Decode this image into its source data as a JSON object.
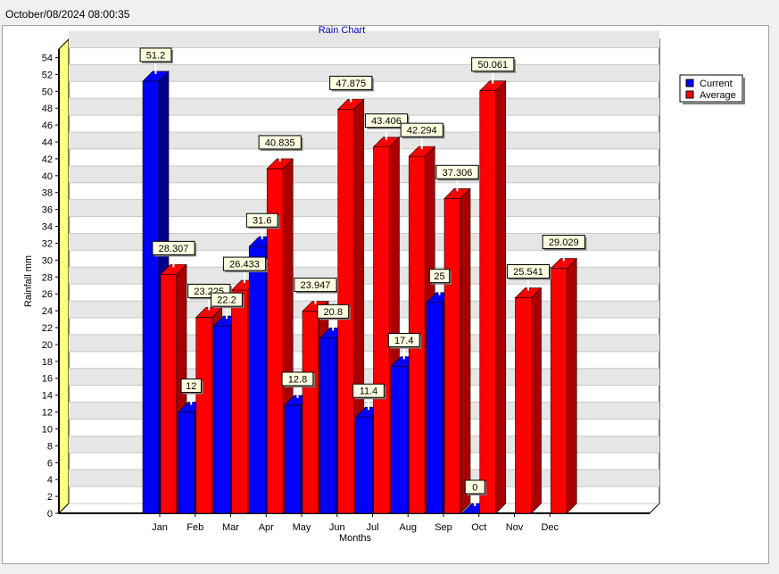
{
  "window": {
    "timestamp": "October/08/2024 08:00:35"
  },
  "colors": {
    "current": "#0000ff",
    "current_dark": "#00008a",
    "average": "#ff0000",
    "average_dark": "#a80000",
    "title": "#0000c0",
    "label_bg": "#ffffe1",
    "wall_left": "#ffff80",
    "band": "#e6e6e6"
  },
  "chart_data": {
    "type": "bar",
    "title": "Rain Chart",
    "xlabel": "Months",
    "ylabel": "Rainfall mm",
    "ylim": [
      0,
      55
    ],
    "yticks": [
      0,
      2,
      4,
      6,
      8,
      10,
      12,
      14,
      16,
      18,
      20,
      22,
      24,
      26,
      28,
      30,
      32,
      34,
      36,
      38,
      40,
      42,
      44,
      46,
      48,
      50,
      52,
      54
    ],
    "categories": [
      "Jan",
      "Feb",
      "Mar",
      "Apr",
      "May",
      "Jun",
      "Jul",
      "Aug",
      "Sep",
      "Oct",
      "Nov",
      "Dec"
    ],
    "series": [
      {
        "name": "Current",
        "values": [
          51.2,
          12,
          22.2,
          31.6,
          12.8,
          20.8,
          11.4,
          17.4,
          25,
          0,
          null,
          null
        ],
        "labels": [
          "51.2",
          "12",
          "22.2",
          "31.6",
          "12.8",
          "20.8",
          "11.4",
          "17.4",
          "25",
          "0",
          "",
          ""
        ]
      },
      {
        "name": "Average",
        "values": [
          28.307,
          23.225,
          26.433,
          40.835,
          23.947,
          47.875,
          43.406,
          42.294,
          37.306,
          50.061,
          25.541,
          29.029
        ],
        "labels": [
          "28.307",
          "23.225",
          "26.433",
          "40.835",
          "23.947",
          "47.875",
          "43.406",
          "42.294",
          "37.306",
          "50.061",
          "25.541",
          "29.029"
        ]
      }
    ],
    "legend_position": "top-right",
    "grid": true
  }
}
